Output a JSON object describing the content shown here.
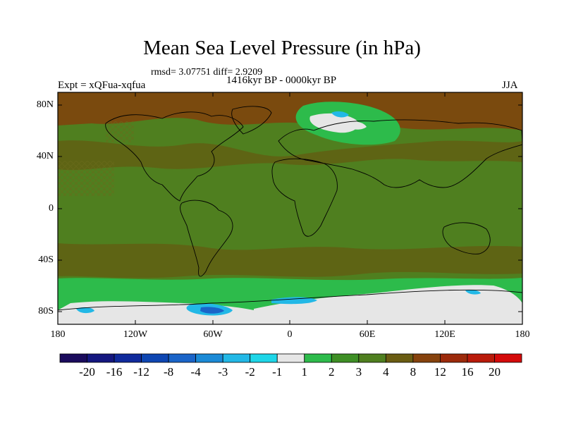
{
  "title": "Mean Sea Level Pressure (in hPa)",
  "stats": "rmsd= 3.07751  diff= 2.9209",
  "experiment": "Expt = xQFua-xqfua",
  "period": "1416kyr BP - 0000kyr BP",
  "season": "JJA",
  "map": {
    "lat_labels": [
      "80N",
      "40N",
      "0",
      "40S",
      "80S"
    ],
    "lon_labels": [
      "180",
      "120W",
      "60W",
      "0",
      "60E",
      "120E",
      "180"
    ],
    "colors": {
      "ocean_base": "#4f7f1f",
      "land": "#4f7f1f",
      "high": "#7a4a0e",
      "mid_high": "#5e6414",
      "positive_small": "#2dbb4b",
      "near_zero": "#e6e6e6",
      "negative_small": "#22b8e6",
      "negative": "#1a64c8",
      "coast": "#000000"
    }
  },
  "colorbar": {
    "labels": [
      "-20",
      "-16",
      "-12",
      "-8",
      "-4",
      "-3",
      "-2",
      "-1",
      "1",
      "2",
      "3",
      "4",
      "8",
      "12",
      "16",
      "20"
    ],
    "colors": [
      "#1a0b5c",
      "#14177f",
      "#102a9c",
      "#0e46b2",
      "#1a64c8",
      "#1b8ad6",
      "#22b8e6",
      "#1ed6e8",
      "#e6e6e6",
      "#2dbb4b",
      "#3e8f25",
      "#4f7f1f",
      "#6a5c12",
      "#86420d",
      "#9c2a0b",
      "#b91a0a",
      "#d40a0a"
    ]
  }
}
